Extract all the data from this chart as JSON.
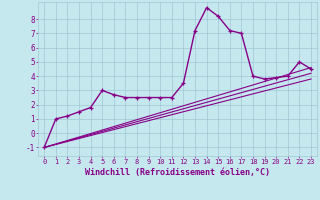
{
  "background_color": "#c5e8ef",
  "grid_color": "#9fc8d4",
  "line_color": "#880088",
  "xlabel": "Windchill (Refroidissement éolien,°C)",
  "xlabel_fontsize": 6.0,
  "ylabel_values": [
    -1,
    0,
    1,
    2,
    3,
    4,
    5,
    6,
    7,
    8
  ],
  "xlim": [
    -0.5,
    23.5
  ],
  "ylim": [
    -1.6,
    9.2
  ],
  "x_ticks": [
    0,
    1,
    2,
    3,
    4,
    5,
    6,
    7,
    8,
    9,
    10,
    11,
    12,
    13,
    14,
    15,
    16,
    17,
    18,
    19,
    20,
    21,
    22,
    23
  ],
  "series": [
    {
      "x": [
        0,
        1,
        2,
        3,
        4,
        5,
        6,
        7,
        8,
        9,
        10,
        11,
        12,
        13,
        14,
        15,
        16,
        17,
        18,
        19,
        20,
        21,
        22,
        23
      ],
      "y": [
        -1.0,
        1.0,
        1.2,
        1.5,
        1.8,
        3.0,
        2.7,
        2.5,
        2.5,
        2.5,
        2.5,
        2.5,
        3.5,
        7.2,
        8.8,
        8.2,
        7.2,
        7.0,
        4.0,
        3.8,
        3.9,
        4.0,
        5.0,
        4.5
      ],
      "marker": "+",
      "lw": 1.0,
      "ms": 3.5
    },
    {
      "x": [
        0,
        23
      ],
      "y": [
        -1.0,
        4.6
      ],
      "marker": null,
      "lw": 0.8
    },
    {
      "x": [
        0,
        23
      ],
      "y": [
        -1.0,
        4.2
      ],
      "marker": null,
      "lw": 0.8
    },
    {
      "x": [
        0,
        23
      ],
      "y": [
        -1.0,
        3.8
      ],
      "marker": null,
      "lw": 0.8
    }
  ]
}
